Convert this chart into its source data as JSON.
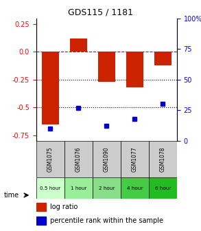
{
  "title": "GDS115 / 1181",
  "samples": [
    "GSM1075",
    "GSM1076",
    "GSM1090",
    "GSM1077",
    "GSM1078"
  ],
  "time_labels": [
    "0.5 hour",
    "1 hour",
    "2 hour",
    "4 hour",
    "6 hour"
  ],
  "time_colors": [
    "#ccffcc",
    "#99ee99",
    "#88dd88",
    "#44cc44",
    "#22bb22"
  ],
  "log_ratios": [
    -0.65,
    0.12,
    -0.27,
    -0.32,
    -0.12
  ],
  "percentile_ranks": [
    10,
    27,
    12,
    18,
    30
  ],
  "bar_color": "#cc2200",
  "dot_color": "#0000cc",
  "ylim_left": [
    -0.8,
    0.3
  ],
  "ylim_right": [
    0,
    100
  ],
  "yticks_left": [
    0.25,
    0.0,
    -0.25,
    -0.5,
    -0.75
  ],
  "yticks_right": [
    100,
    75,
    50,
    25,
    0
  ],
  "hline_dashed": 0.0,
  "hline_dotted1": -0.25,
  "hline_dotted2": -0.5,
  "bar_width": 0.6,
  "sample_bg_color": "#cccccc",
  "legend_ratio_color": "#cc2200",
  "legend_pct_color": "#0000cc"
}
